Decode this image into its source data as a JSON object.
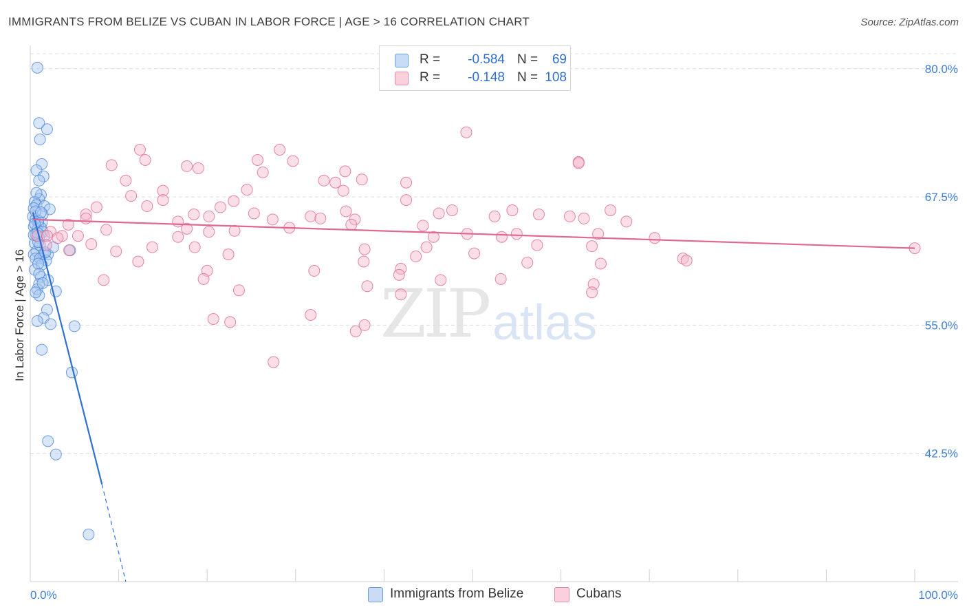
{
  "title": "IMMIGRANTS FROM BELIZE VS CUBAN IN LABOR FORCE | AGE > 16 CORRELATION CHART",
  "source": "Source: ZipAtlas.com",
  "watermark": {
    "zip": "ZIP",
    "atlas": "atlas"
  },
  "legend": {
    "rows": [
      {
        "r_label": "R =",
        "r_value": "-0.584",
        "n_label": "N =",
        "n_value": "69",
        "color": "#a8c8f0"
      },
      {
        "r_label": "R =",
        "r_value": "-0.148",
        "n_label": "N =",
        "n_value": "108",
        "color": "#f5b8cb"
      }
    ]
  },
  "bottom_legend": [
    {
      "label": "Immigrants from Belize",
      "color": "#a8c8f0"
    },
    {
      "label": "Cubans",
      "color": "#f5b8cb"
    }
  ],
  "chart_data": {
    "type": "scatter",
    "title": "IMMIGRANTS FROM BELIZE VS CUBAN IN LABOR FORCE | AGE > 16 CORRELATION CHART",
    "xlabel": "",
    "ylabel": "In Labor Force | Age > 16",
    "xlim": [
      0,
      100
    ],
    "ylim": [
      30,
      82
    ],
    "x_tick_labels": [
      "0.0%",
      "100.0%"
    ],
    "y_ticks": [
      42.5,
      55.0,
      67.5,
      80.0
    ],
    "y_tick_labels": [
      "42.5%",
      "55.0%",
      "67.5%",
      "80.0%"
    ],
    "grid": "horizontal dashed",
    "legend_position": "top-center",
    "series": [
      {
        "name": "Immigrants from Belize",
        "color": "#4a86d8",
        "fill": "#a8c8f0",
        "trend": {
          "x0": 0.3,
          "y0": 66.0,
          "x1": 8.1,
          "y1": 39.5,
          "dash_x1": 10.8,
          "dash_y1": 30.0
        },
        "points": [
          [
            0.8,
            80.1
          ],
          [
            1.0,
            74.7
          ],
          [
            1.9,
            74.1
          ],
          [
            1.1,
            73.1
          ],
          [
            1.3,
            70.7
          ],
          [
            0.7,
            70.1
          ],
          [
            1.5,
            69.5
          ],
          [
            1.0,
            69.1
          ],
          [
            1.2,
            67.7
          ],
          [
            1.0,
            67.3
          ],
          [
            0.5,
            67.0
          ],
          [
            0.7,
            66.7
          ],
          [
            0.4,
            66.4
          ],
          [
            1.6,
            66.6
          ],
          [
            2.2,
            66.3
          ],
          [
            1.4,
            65.8
          ],
          [
            0.3,
            65.6
          ],
          [
            0.6,
            65.3
          ],
          [
            1.3,
            65.0
          ],
          [
            0.9,
            64.9
          ],
          [
            0.4,
            64.6
          ],
          [
            0.8,
            64.3
          ],
          [
            1.2,
            64.5
          ],
          [
            0.6,
            63.9
          ],
          [
            1.0,
            63.5
          ],
          [
            0.5,
            63.0
          ],
          [
            0.7,
            62.2
          ],
          [
            1.5,
            62.0
          ],
          [
            2.0,
            61.9
          ],
          [
            4.5,
            62.3
          ],
          [
            0.4,
            61.9
          ],
          [
            0.6,
            61.5
          ],
          [
            1.1,
            61.5
          ],
          [
            1.8,
            61.3
          ],
          [
            1.3,
            60.9
          ],
          [
            0.5,
            60.4
          ],
          [
            1.2,
            59.7
          ],
          [
            2.0,
            59.4
          ],
          [
            1.0,
            59.0
          ],
          [
            0.8,
            58.5
          ],
          [
            2.9,
            58.3
          ],
          [
            1.0,
            57.9
          ],
          [
            1.9,
            56.5
          ],
          [
            1.5,
            55.7
          ],
          [
            0.8,
            55.4
          ],
          [
            2.3,
            55.1
          ],
          [
            5.0,
            54.9
          ],
          [
            1.3,
            52.6
          ],
          [
            4.7,
            50.4
          ],
          [
            2.0,
            43.7
          ],
          [
            2.9,
            42.4
          ],
          [
            6.6,
            34.6
          ],
          [
            0.9,
            65.2
          ],
          [
            1.4,
            64.1
          ],
          [
            0.6,
            66.1
          ],
          [
            1.1,
            62.8
          ],
          [
            0.9,
            61.0
          ],
          [
            0.5,
            64.9
          ],
          [
            1.6,
            63.7
          ],
          [
            0.7,
            67.9
          ],
          [
            1.2,
            66.0
          ],
          [
            0.9,
            63.1
          ],
          [
            1.7,
            62.1
          ],
          [
            0.4,
            63.8
          ],
          [
            1.0,
            60.0
          ],
          [
            1.4,
            59.1
          ],
          [
            0.6,
            58.2
          ],
          [
            2.6,
            62.6
          ],
          [
            0.8,
            64.0
          ]
        ]
      },
      {
        "name": "Cubans",
        "color": "#e06890",
        "fill": "#f5b8cb",
        "trend": {
          "x0": 0.3,
          "y0": 65.3,
          "x1": 100,
          "y1": 62.5
        },
        "points": [
          [
            49.3,
            73.8
          ],
          [
            28.2,
            72.1
          ],
          [
            12.4,
            72.1
          ],
          [
            13.0,
            71.1
          ],
          [
            25.7,
            71.1
          ],
          [
            29.7,
            71.0
          ],
          [
            62.0,
            70.9
          ],
          [
            62.0,
            70.8
          ],
          [
            9.2,
            70.6
          ],
          [
            17.7,
            70.5
          ],
          [
            19.0,
            70.3
          ],
          [
            35.6,
            70.0
          ],
          [
            26.3,
            69.9
          ],
          [
            37.5,
            69.2
          ],
          [
            10.8,
            69.1
          ],
          [
            33.2,
            69.1
          ],
          [
            34.5,
            68.9
          ],
          [
            42.5,
            68.9
          ],
          [
            15.0,
            68.1
          ],
          [
            24.5,
            68.2
          ],
          [
            35.4,
            68.1
          ],
          [
            11.4,
            67.6
          ],
          [
            15.0,
            67.2
          ],
          [
            23.0,
            67.1
          ],
          [
            42.5,
            67.2
          ],
          [
            13.2,
            66.6
          ],
          [
            7.5,
            66.5
          ],
          [
            6.3,
            65.8
          ],
          [
            21.5,
            66.5
          ],
          [
            20.2,
            65.6
          ],
          [
            54.5,
            66.2
          ],
          [
            47.7,
            66.2
          ],
          [
            65.6,
            66.2
          ],
          [
            35.7,
            66.1
          ],
          [
            25.3,
            65.9
          ],
          [
            18.5,
            65.8
          ],
          [
            46.2,
            65.9
          ],
          [
            31.7,
            65.6
          ],
          [
            32.8,
            65.4
          ],
          [
            57.5,
            65.8
          ],
          [
            6.3,
            65.4
          ],
          [
            27.4,
            65.3
          ],
          [
            36.7,
            65.3
          ],
          [
            61.0,
            65.6
          ],
          [
            52.5,
            65.6
          ],
          [
            62.6,
            65.4
          ],
          [
            16.7,
            65.1
          ],
          [
            67.4,
            65.1
          ],
          [
            4.3,
            64.8
          ],
          [
            36.3,
            64.8
          ],
          [
            44.4,
            64.7
          ],
          [
            29.3,
            64.5
          ],
          [
            8.6,
            64.3
          ],
          [
            17.7,
            64.4
          ],
          [
            20.2,
            64.1
          ],
          [
            23.1,
            64.2
          ],
          [
            2.3,
            64.1
          ],
          [
            49.4,
            63.9
          ],
          [
            55.0,
            63.9
          ],
          [
            64.2,
            63.9
          ],
          [
            0.8,
            63.7
          ],
          [
            1.9,
            63.7
          ],
          [
            3.6,
            63.7
          ],
          [
            5.4,
            63.7
          ],
          [
            16.7,
            63.6
          ],
          [
            45.6,
            63.6
          ],
          [
            53.3,
            63.6
          ],
          [
            70.6,
            63.5
          ],
          [
            3.1,
            63.5
          ],
          [
            6.9,
            62.9
          ],
          [
            13.8,
            62.6
          ],
          [
            18.6,
            62.6
          ],
          [
            44.8,
            62.6
          ],
          [
            4.4,
            62.3
          ],
          [
            9.7,
            62.2
          ],
          [
            1.8,
            62.8
          ],
          [
            57.3,
            62.8
          ],
          [
            63.5,
            62.7
          ],
          [
            37.8,
            62.4
          ],
          [
            43.6,
            61.7
          ],
          [
            22.4,
            61.9
          ],
          [
            50.2,
            62.0
          ],
          [
            73.8,
            61.5
          ],
          [
            74.2,
            61.3
          ],
          [
            12.2,
            61.2
          ],
          [
            37.7,
            61.2
          ],
          [
            56.2,
            61.1
          ],
          [
            64.5,
            61.0
          ],
          [
            20.0,
            60.3
          ],
          [
            41.9,
            60.5
          ],
          [
            32.1,
            60.3
          ],
          [
            41.7,
            59.9
          ],
          [
            53.2,
            59.5
          ],
          [
            19.6,
            59.5
          ],
          [
            8.3,
            59.4
          ],
          [
            46.4,
            59.4
          ],
          [
            63.7,
            59.0
          ],
          [
            38.1,
            58.8
          ],
          [
            23.6,
            58.4
          ],
          [
            63.5,
            58.2
          ],
          [
            41.9,
            58.0
          ],
          [
            31.7,
            56.0
          ],
          [
            20.7,
            55.6
          ],
          [
            22.6,
            55.3
          ],
          [
            37.8,
            55.0
          ],
          [
            36.8,
            54.4
          ],
          [
            27.5,
            51.4
          ],
          [
            100.0,
            62.5
          ]
        ]
      }
    ]
  }
}
